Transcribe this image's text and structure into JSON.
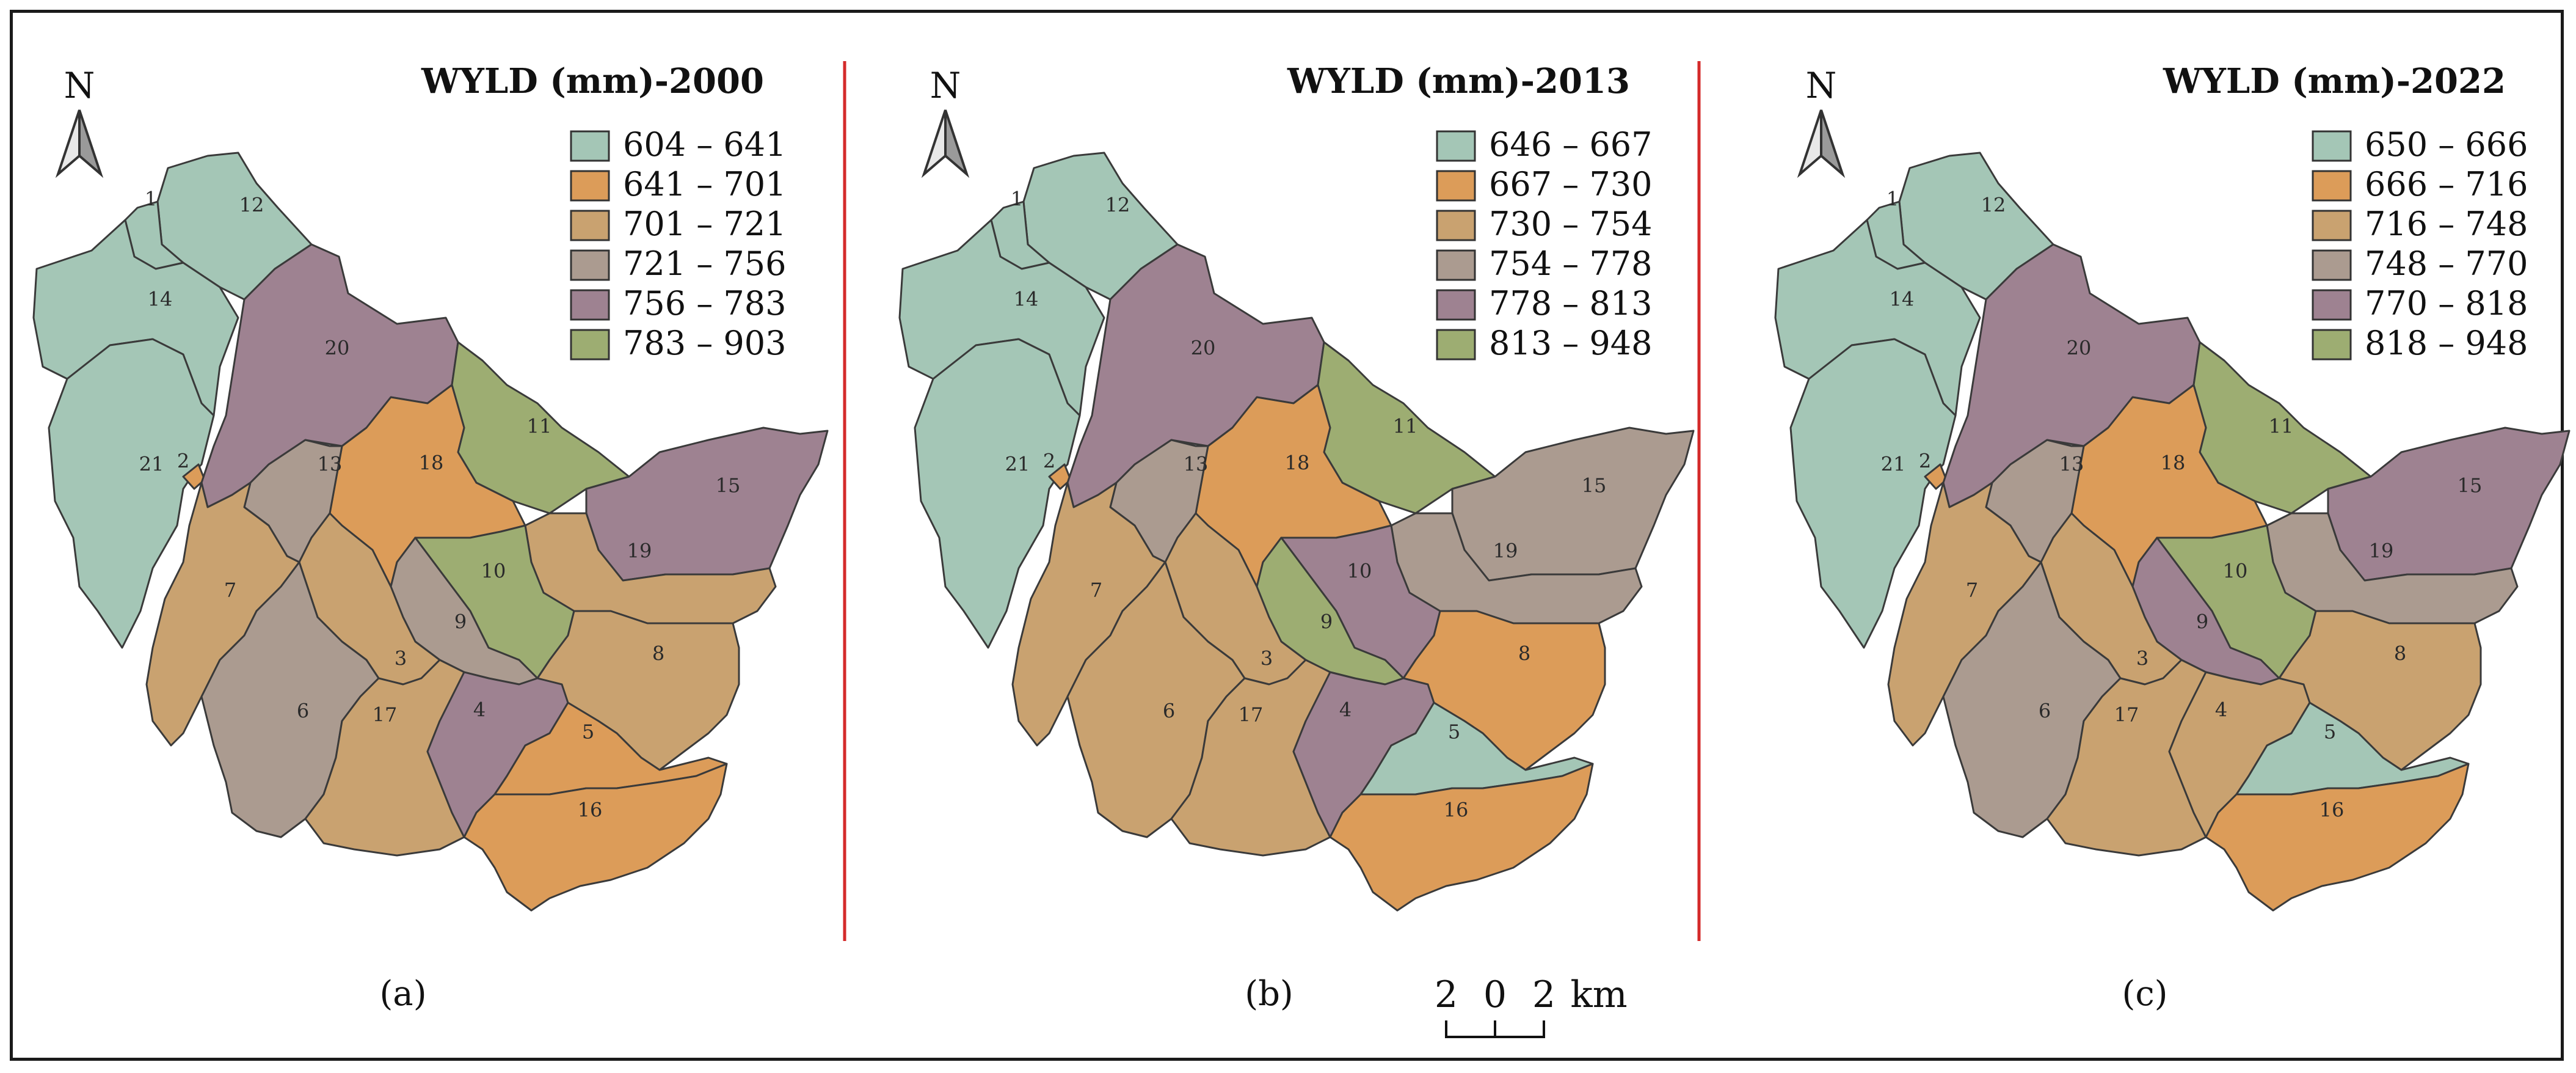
{
  "panels": [
    {
      "title": "WYLD (mm)-2000",
      "caption": "(a)",
      "north": "N",
      "legend": [
        {
          "label": "604 – 641",
          "color": "#a4c6b6"
        },
        {
          "label": "641 – 701",
          "color": "#dc9c59"
        },
        {
          "label": "701 – 721",
          "color": "#c9a270"
        },
        {
          "label": "721 – 756",
          "color": "#ab9b90"
        },
        {
          "label": "756 – 783",
          "color": "#9e8291"
        },
        {
          "label": "783 – 903",
          "color": "#9dad72"
        }
      ],
      "classes": {
        "1": 0,
        "12": 0,
        "14": 0,
        "21": 0,
        "2": 1,
        "18": 1,
        "5": 1,
        "16": 1,
        "7": 2,
        "8": 2,
        "17": 2,
        "3": 2,
        "19": 2,
        "13": 3,
        "9": 3,
        "6": 3,
        "20": 4,
        "4": 4,
        "15": 4,
        "11": 5,
        "10": 5
      }
    },
    {
      "title": "WYLD (mm)-2013",
      "caption": "(b)",
      "north": "N",
      "legend": [
        {
          "label": "646 – 667",
          "color": "#a4c6b6"
        },
        {
          "label": "667 – 730",
          "color": "#dc9c59"
        },
        {
          "label": "730 – 754",
          "color": "#c9a270"
        },
        {
          "label": "754 – 778",
          "color": "#ab9b90"
        },
        {
          "label": "778 – 813",
          "color": "#9e8291"
        },
        {
          "label": "813 – 948",
          "color": "#9dad72"
        }
      ],
      "classes": {
        "1": 0,
        "12": 0,
        "14": 0,
        "21": 0,
        "5": 0,
        "2": 1,
        "18": 1,
        "8": 1,
        "16": 1,
        "7": 2,
        "6": 2,
        "17": 2,
        "3": 2,
        "13": 3,
        "15": 3,
        "19": 3,
        "20": 4,
        "4": 4,
        "10": 4,
        "11": 5,
        "9": 5
      }
    },
    {
      "title": "WYLD (mm)-2022",
      "caption": "(c)",
      "north": "N",
      "legend": [
        {
          "label": "650 – 666",
          "color": "#a4c6b6"
        },
        {
          "label": "666 – 716",
          "color": "#dc9c59"
        },
        {
          "label": "716 – 748",
          "color": "#c9a270"
        },
        {
          "label": "748 – 770",
          "color": "#ab9b90"
        },
        {
          "label": "770 – 818",
          "color": "#9e8291"
        },
        {
          "label": "818 – 948",
          "color": "#9dad72"
        }
      ],
      "classes": {
        "1": 0,
        "12": 0,
        "14": 0,
        "21": 0,
        "5": 0,
        "2": 1,
        "18": 1,
        "16": 1,
        "7": 2,
        "8": 2,
        "4": 2,
        "17": 2,
        "3": 2,
        "6": 3,
        "13": 3,
        "19": 3,
        "20": 4,
        "9": 4,
        "15": 4,
        "11": 5,
        "10": 5
      }
    }
  ],
  "scale_bar": {
    "left": "2",
    "mid": "0",
    "right": "2",
    "unit": "km"
  },
  "colors": {
    "divider": "#d42a2a",
    "border": "#1a1a1a",
    "basin_outline": "#3a3a3a"
  }
}
